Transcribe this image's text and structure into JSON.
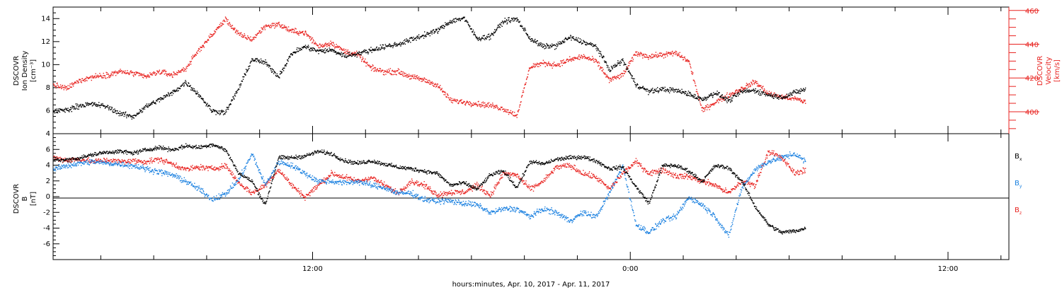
{
  "chart_data": [
    {
      "type": "scatter",
      "panel": "top",
      "ylabel_lines": [
        "DSCOVR",
        "Ion Density",
        "[cm⁻³]"
      ],
      "y2label_lines": [
        "DSCOVR",
        "Velocity",
        "[km/s]"
      ],
      "y_ticks": [
        4,
        6,
        8,
        10,
        12,
        14
      ],
      "y_tick_labels": [
        "4",
        "6",
        "8",
        "10",
        "12",
        "14"
      ],
      "ylim": [
        4,
        15
      ],
      "y2_ticks": [
        400,
        420,
        440,
        460
      ],
      "y2_tick_labels": [
        "400",
        "420",
        "440",
        "460"
      ],
      "y2lim": [
        387,
        462
      ],
      "series": [
        {
          "name": "",
          "axis": "left",
          "color": "#000000",
          "x": [
            0,
            0.5,
            1.0,
            1.5,
            2.0,
            2.5,
            3.0,
            3.5,
            4.0,
            4.5,
            5.0,
            5.5,
            6.0,
            6.5,
            7.0,
            7.5,
            8.0,
            8.5,
            9.0,
            9.5,
            10.0,
            10.5,
            11.0,
            11.5,
            12.0,
            12.5,
            13.0,
            13.5,
            14.0,
            14.5,
            15.0,
            15.5,
            16.0,
            16.5,
            17.0,
            17.5,
            18.0,
            18.5,
            19.0,
            19.5,
            20.0,
            20.5,
            21.0,
            21.5,
            22.0,
            22.5,
            23.0,
            23.5,
            24.0,
            24.5,
            25.0,
            25.5,
            26.0,
            26.5,
            27.0,
            27.5,
            28.0,
            28.4
          ],
          "values": [
            6.0,
            6.1,
            6.5,
            6.6,
            6.4,
            5.8,
            5.5,
            6.4,
            7.0,
            7.6,
            8.5,
            7.4,
            6.0,
            5.9,
            8.0,
            10.5,
            10.2,
            9.0,
            11.0,
            11.6,
            11.2,
            11.3,
            10.8,
            11.0,
            11.3,
            11.6,
            11.8,
            12.2,
            12.6,
            13.0,
            13.8,
            14.1,
            12.3,
            12.5,
            13.8,
            14.0,
            12.3,
            11.6,
            11.7,
            12.4,
            12.0,
            11.6,
            9.6,
            10.4,
            8.3,
            7.7,
            7.9,
            7.8,
            7.5,
            7.0,
            7.6,
            6.9,
            7.7,
            7.8,
            7.4,
            7.2,
            7.6,
            7.9
          ]
        },
        {
          "name": "",
          "axis": "right",
          "color": "#e8221f",
          "x": [
            0,
            0.5,
            1.0,
            1.5,
            2.0,
            2.5,
            3.0,
            3.5,
            4.0,
            4.5,
            5.0,
            5.5,
            6.0,
            6.5,
            7.0,
            7.5,
            8.0,
            8.5,
            9.0,
            9.5,
            10.0,
            10.5,
            11.0,
            11.5,
            12.0,
            12.5,
            13.0,
            13.5,
            14.0,
            14.5,
            15.0,
            15.5,
            16.0,
            16.5,
            17.0,
            17.5,
            18.0,
            18.5,
            19.0,
            19.5,
            20.0,
            20.5,
            21.0,
            21.5,
            22.0,
            22.5,
            23.0,
            23.5,
            24.0,
            24.5,
            25.0,
            25.5,
            26.0,
            26.5,
            27.0,
            27.5,
            28.0,
            28.4
          ],
          "values": [
            416,
            414,
            419,
            421,
            422,
            424,
            423,
            421,
            424,
            422,
            426,
            437,
            446,
            455,
            446,
            443,
            451,
            452,
            448,
            447,
            439,
            441,
            436,
            434,
            426,
            424,
            424,
            421,
            419,
            416,
            407,
            406,
            405,
            404,
            402,
            398,
            427,
            429,
            428,
            431,
            433,
            430,
            419,
            422,
            435,
            433,
            434,
            435,
            430,
            401,
            406,
            410,
            414,
            418,
            411,
            409,
            408,
            406
          ]
        }
      ]
    },
    {
      "type": "scatter",
      "panel": "bottom",
      "ylabel_lines": [
        "DSCOVR",
        "B",
        "[nT]"
      ],
      "y_ticks": [
        -6,
        -4,
        -2,
        0,
        2,
        4,
        6
      ],
      "y_tick_labels": [
        "-6",
        "-4",
        "-2",
        "0",
        "2",
        "4",
        "6"
      ],
      "ylim": [
        -8,
        8
      ],
      "zero_line": true,
      "legend_position": "right",
      "legend_entries": [
        {
          "base": "B",
          "sub": "x",
          "color": "#000000"
        },
        {
          "base": "B",
          "sub": "y",
          "color": "#1a80e0"
        },
        {
          "base": "B",
          "sub": "z",
          "color": "#e8221f"
        }
      ],
      "series": [
        {
          "name": "Bx",
          "color": "#000000",
          "x": [
            0,
            0.5,
            1.0,
            1.5,
            2.0,
            2.5,
            3.0,
            3.5,
            4.0,
            4.5,
            5.0,
            5.5,
            6.0,
            6.5,
            7.0,
            7.5,
            8.0,
            8.5,
            9.0,
            9.5,
            10.0,
            10.5,
            11.0,
            11.5,
            12.0,
            12.5,
            13.0,
            13.5,
            14.0,
            14.5,
            15.0,
            15.5,
            16.0,
            16.5,
            17.0,
            17.5,
            18.0,
            18.5,
            19.0,
            19.5,
            20.0,
            20.5,
            21.0,
            21.5,
            22.0,
            22.5,
            23.0,
            23.5,
            24.0,
            24.5,
            25.0,
            25.5,
            26.0,
            26.5,
            27.0,
            27.5,
            28.0,
            28.4
          ],
          "values": [
            4.8,
            4.7,
            5.0,
            5.4,
            5.7,
            5.8,
            5.6,
            6.0,
            6.3,
            6.0,
            6.5,
            6.3,
            6.7,
            6.0,
            3.0,
            2.0,
            -1.0,
            5.0,
            5.0,
            5.2,
            5.8,
            5.5,
            4.6,
            4.3,
            4.6,
            4.2,
            3.8,
            3.6,
            3.3,
            3.0,
            1.5,
            1.8,
            1.0,
            2.8,
            3.3,
            1.2,
            4.5,
            4.2,
            4.8,
            5.0,
            5.1,
            4.6,
            3.6,
            3.8,
            1.3,
            -0.8,
            4.0,
            4.0,
            3.3,
            2.0,
            4.0,
            3.7,
            2.0,
            -1.2,
            -3.5,
            -4.5,
            -4.3,
            -4.0
          ]
        },
        {
          "name": "By",
          "color": "#1a80e0",
          "x": [
            0,
            0.5,
            1.0,
            1.5,
            2.0,
            2.5,
            3.0,
            3.5,
            4.0,
            4.5,
            5.0,
            5.5,
            6.0,
            6.5,
            7.0,
            7.5,
            8.0,
            8.5,
            9.0,
            9.5,
            10.0,
            10.5,
            11.0,
            11.5,
            12.0,
            12.5,
            13.0,
            13.5,
            14.0,
            14.5,
            15.0,
            15.5,
            16.0,
            16.5,
            17.0,
            17.5,
            18.0,
            18.5,
            19.0,
            19.5,
            20.0,
            20.5,
            21.0,
            21.5,
            22.0,
            22.5,
            23.0,
            23.5,
            24.0,
            24.5,
            25.0,
            25.5,
            26.0,
            26.5,
            27.0,
            27.5,
            28.0,
            28.4
          ],
          "values": [
            3.5,
            4.0,
            4.3,
            4.5,
            4.3,
            4.2,
            4.0,
            3.6,
            3.2,
            2.8,
            2.0,
            1.0,
            -0.3,
            0.4,
            2.2,
            5.5,
            1.5,
            4.5,
            4.0,
            3.0,
            2.0,
            2.0,
            1.8,
            2.0,
            1.5,
            1.2,
            0.5,
            0.5,
            -0.3,
            -0.5,
            -0.5,
            -0.8,
            -1.0,
            -2.0,
            -1.5,
            -1.5,
            -2.5,
            -1.5,
            -2.0,
            -3.0,
            -2.0,
            -2.5,
            0.5,
            4.0,
            -3.5,
            -4.5,
            -3.0,
            -2.5,
            0.0,
            -1.0,
            -2.5,
            -5.0,
            1.2,
            3.5,
            4.5,
            5.0,
            5.5,
            4.5
          ]
        },
        {
          "name": "Bz",
          "color": "#e8221f",
          "x": [
            0,
            0.5,
            1.0,
            1.5,
            2.0,
            2.5,
            3.0,
            3.5,
            4.0,
            4.5,
            5.0,
            5.5,
            6.0,
            6.5,
            7.0,
            7.5,
            8.0,
            8.5,
            9.0,
            9.5,
            10.0,
            10.5,
            11.0,
            11.5,
            12.0,
            12.5,
            13.0,
            13.5,
            14.0,
            14.5,
            15.0,
            15.5,
            16.0,
            16.5,
            17.0,
            17.5,
            18.0,
            18.5,
            19.0,
            19.5,
            20.0,
            20.5,
            21.0,
            21.5,
            22.0,
            22.5,
            23.0,
            23.5,
            24.0,
            24.5,
            25.0,
            25.5,
            26.0,
            26.5,
            27.0,
            27.5,
            28.0,
            28.4
          ],
          "values": [
            5.0,
            4.7,
            4.8,
            4.5,
            4.7,
            4.5,
            4.6,
            4.5,
            4.8,
            4.2,
            3.5,
            3.8,
            3.6,
            4.0,
            1.8,
            0.5,
            1.5,
            3.5,
            1.5,
            0.0,
            1.5,
            3.0,
            2.5,
            2.0,
            2.5,
            1.5,
            0.5,
            2.0,
            1.5,
            0.3,
            0.6,
            0.6,
            1.5,
            0.2,
            3.0,
            2.8,
            1.0,
            2.0,
            3.8,
            4.0,
            3.0,
            2.5,
            1.0,
            3.0,
            4.5,
            3.0,
            3.5,
            2.7,
            2.6,
            2.0,
            1.5,
            0.5,
            2.0,
            1.5,
            5.8,
            5.0,
            3.0,
            3.5
          ]
        }
      ]
    }
  ],
  "x_axis": {
    "title": "hours:minutes, Apr. 10, 2017 - Apr. 11, 2017",
    "tick_labels": [
      {
        "hour": 12,
        "label": "12:00"
      },
      {
        "hour": 24,
        "label": "0:00"
      },
      {
        "hour": 36,
        "label": "12:00"
      }
    ],
    "range_hours": [
      2.2,
      38.3
    ],
    "minor_tick_every_hours": 2
  }
}
